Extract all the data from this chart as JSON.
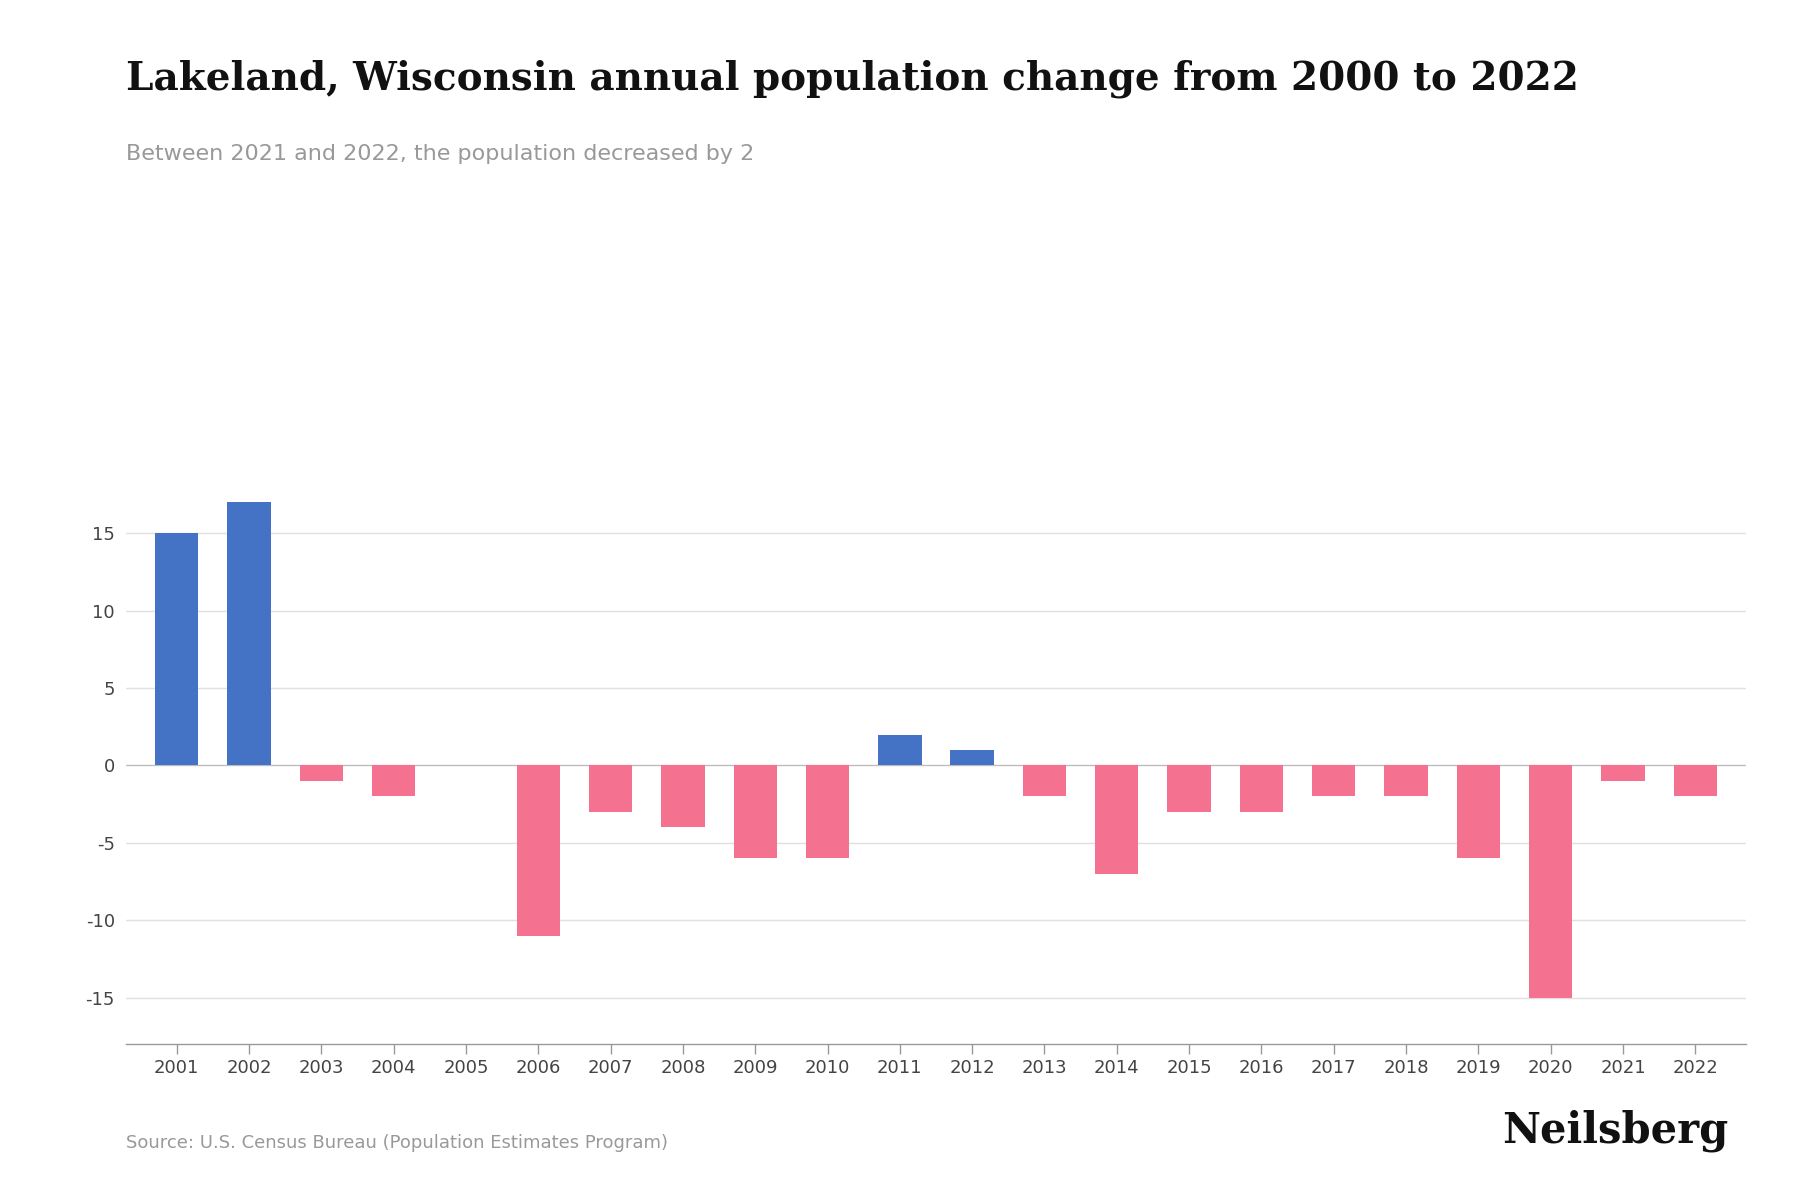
{
  "title": "Lakeland, Wisconsin annual population change from 2000 to 2022",
  "subtitle": "Between 2021 and 2022, the population decreased by 2",
  "source": "Source: U.S. Census Bureau (Population Estimates Program)",
  "brand": "Neilsberg",
  "years": [
    2001,
    2002,
    2003,
    2004,
    2005,
    2006,
    2007,
    2008,
    2009,
    2010,
    2011,
    2012,
    2013,
    2014,
    2015,
    2016,
    2017,
    2018,
    2019,
    2020,
    2021,
    2022
  ],
  "values": [
    15,
    17,
    -1,
    -2,
    0,
    -11,
    -3,
    -4,
    -6,
    -6,
    2,
    1,
    -2,
    -7,
    -3,
    -3,
    -2,
    -2,
    -6,
    -15,
    -1,
    -2
  ],
  "color_positive": "#4472C4",
  "color_negative": "#F4718F",
  "background_color": "#FFFFFF",
  "title_fontsize": 28,
  "subtitle_fontsize": 16,
  "subtitle_color": "#999999",
  "tick_fontsize": 13,
  "ylim": [
    -18,
    20
  ],
  "yticks": [
    -15,
    -10,
    -5,
    0,
    5,
    10,
    15
  ],
  "grid_color": "#E0E0E0",
  "source_fontsize": 13,
  "brand_fontsize": 30,
  "source_color": "#999999",
  "brand_color": "#111111"
}
